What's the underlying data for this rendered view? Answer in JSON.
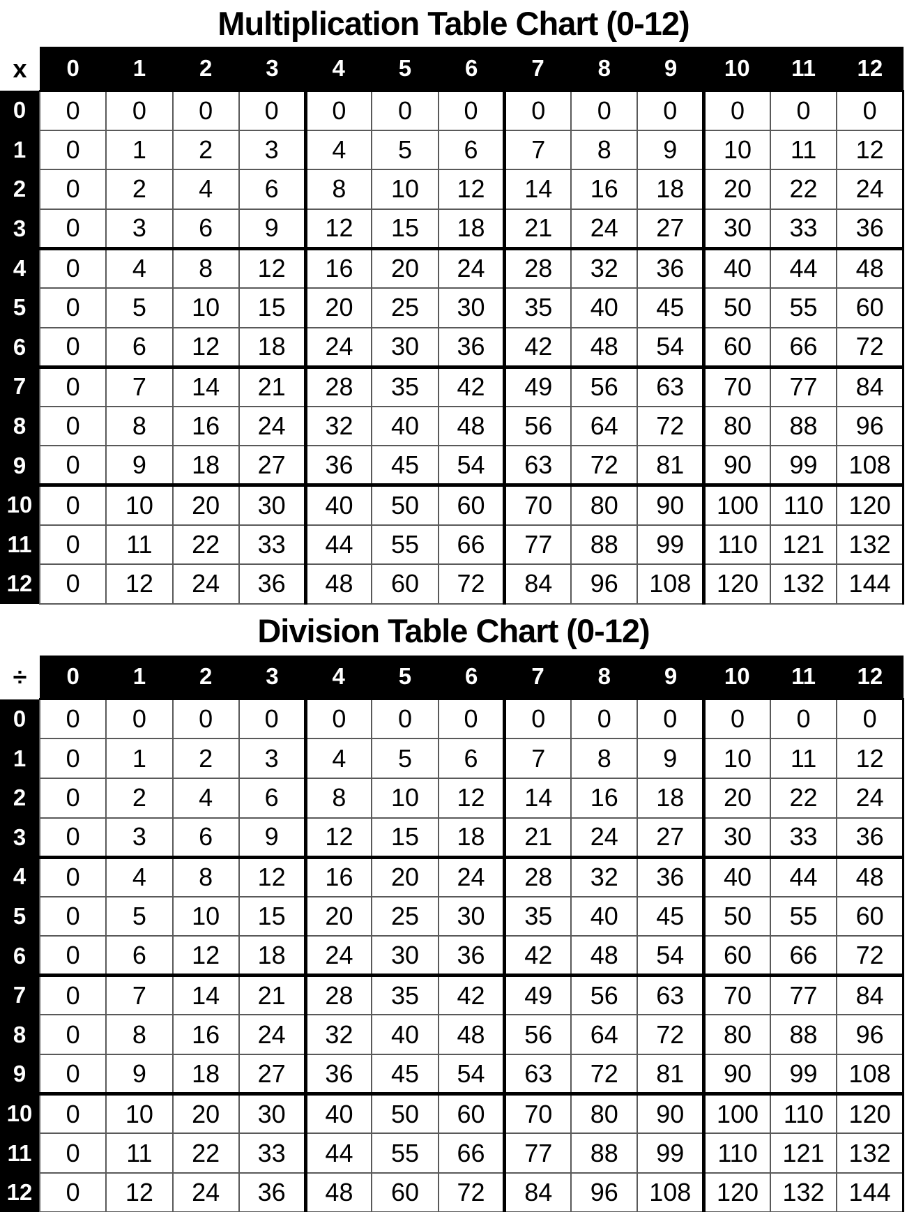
{
  "styles": {
    "header_bg": "#000000",
    "header_text_color": "#ffffff",
    "cell_bg": "#ffffff",
    "cell_text_color": "#000000",
    "thin_border_color": "#595959",
    "thick_border_color": "#000000"
  },
  "group_start_columns": [
    4,
    7,
    10
  ],
  "group_start_rows": [
    4,
    7,
    10
  ],
  "multiplication_table": {
    "title": "Multiplication Table Chart (0-12)",
    "corner_symbol": "x",
    "column_headers": [
      "0",
      "1",
      "2",
      "3",
      "4",
      "5",
      "6",
      "7",
      "8",
      "9",
      "10",
      "11",
      "12"
    ],
    "row_headers": [
      "0",
      "1",
      "2",
      "3",
      "4",
      "5",
      "6",
      "7",
      "8",
      "9",
      "10",
      "11",
      "12"
    ],
    "rows": [
      [
        0,
        0,
        0,
        0,
        0,
        0,
        0,
        0,
        0,
        0,
        0,
        0,
        0
      ],
      [
        0,
        1,
        2,
        3,
        4,
        5,
        6,
        7,
        8,
        9,
        10,
        11,
        12
      ],
      [
        0,
        2,
        4,
        6,
        8,
        10,
        12,
        14,
        16,
        18,
        20,
        22,
        24
      ],
      [
        0,
        3,
        6,
        9,
        12,
        15,
        18,
        21,
        24,
        27,
        30,
        33,
        36
      ],
      [
        0,
        4,
        8,
        12,
        16,
        20,
        24,
        28,
        32,
        36,
        40,
        44,
        48
      ],
      [
        0,
        5,
        10,
        15,
        20,
        25,
        30,
        35,
        40,
        45,
        50,
        55,
        60
      ],
      [
        0,
        6,
        12,
        18,
        24,
        30,
        36,
        42,
        48,
        54,
        60,
        66,
        72
      ],
      [
        0,
        7,
        14,
        21,
        28,
        35,
        42,
        49,
        56,
        63,
        70,
        77,
        84
      ],
      [
        0,
        8,
        16,
        24,
        32,
        40,
        48,
        56,
        64,
        72,
        80,
        88,
        96
      ],
      [
        0,
        9,
        18,
        27,
        36,
        45,
        54,
        63,
        72,
        81,
        90,
        99,
        108
      ],
      [
        0,
        10,
        20,
        30,
        40,
        50,
        60,
        70,
        80,
        90,
        100,
        110,
        120
      ],
      [
        0,
        11,
        22,
        33,
        44,
        55,
        66,
        77,
        88,
        99,
        110,
        121,
        132
      ],
      [
        0,
        12,
        24,
        36,
        48,
        60,
        72,
        84,
        96,
        108,
        120,
        132,
        144
      ]
    ]
  },
  "division_table": {
    "title": "Division Table Chart (0-12)",
    "corner_symbol": "÷",
    "column_headers": [
      "0",
      "1",
      "2",
      "3",
      "4",
      "5",
      "6",
      "7",
      "8",
      "9",
      "10",
      "11",
      "12"
    ],
    "row_headers": [
      "0",
      "1",
      "2",
      "3",
      "4",
      "5",
      "6",
      "7",
      "8",
      "9",
      "10",
      "11",
      "12"
    ],
    "rows": [
      [
        0,
        0,
        0,
        0,
        0,
        0,
        0,
        0,
        0,
        0,
        0,
        0,
        0
      ],
      [
        0,
        1,
        2,
        3,
        4,
        5,
        6,
        7,
        8,
        9,
        10,
        11,
        12
      ],
      [
        0,
        2,
        4,
        6,
        8,
        10,
        12,
        14,
        16,
        18,
        20,
        22,
        24
      ],
      [
        0,
        3,
        6,
        9,
        12,
        15,
        18,
        21,
        24,
        27,
        30,
        33,
        36
      ],
      [
        0,
        4,
        8,
        12,
        16,
        20,
        24,
        28,
        32,
        36,
        40,
        44,
        48
      ],
      [
        0,
        5,
        10,
        15,
        20,
        25,
        30,
        35,
        40,
        45,
        50,
        55,
        60
      ],
      [
        0,
        6,
        12,
        18,
        24,
        30,
        36,
        42,
        48,
        54,
        60,
        66,
        72
      ],
      [
        0,
        7,
        14,
        21,
        28,
        35,
        42,
        49,
        56,
        63,
        70,
        77,
        84
      ],
      [
        0,
        8,
        16,
        24,
        32,
        40,
        48,
        56,
        64,
        72,
        80,
        88,
        96
      ],
      [
        0,
        9,
        18,
        27,
        36,
        45,
        54,
        63,
        72,
        81,
        90,
        99,
        108
      ],
      [
        0,
        10,
        20,
        30,
        40,
        50,
        60,
        70,
        80,
        90,
        100,
        110,
        120
      ],
      [
        0,
        11,
        22,
        33,
        44,
        55,
        66,
        77,
        88,
        99,
        110,
        121,
        132
      ],
      [
        0,
        12,
        24,
        36,
        48,
        60,
        72,
        84,
        96,
        108,
        120,
        132,
        144
      ]
    ]
  }
}
